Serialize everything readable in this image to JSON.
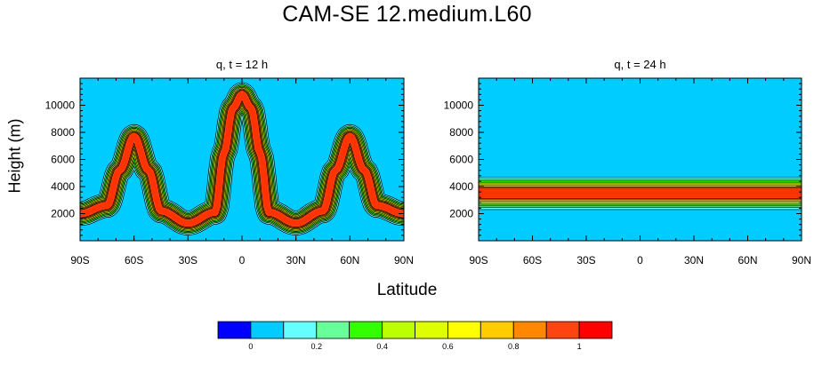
{
  "figure": {
    "title": "CAM-SE 12.medium.L60",
    "xlabel": "Latitude",
    "ylabel": "Height (m)"
  },
  "chart_data": [
    {
      "type": "heatmap",
      "title": "q, t = 12 h",
      "xlabel": "Latitude",
      "ylabel": "Height (m)",
      "x_ticks": [
        "90S",
        "60S",
        "30S",
        "0",
        "30N",
        "60N",
        "90N"
      ],
      "x_tick_values": [
        -90,
        -60,
        -30,
        0,
        30,
        60,
        90
      ],
      "y_ticks": [
        "2000",
        "4000",
        "6000",
        "8000",
        "10000"
      ],
      "y_tick_values": [
        2000,
        4000,
        6000,
        8000,
        10000
      ],
      "xlim": [
        -90,
        90
      ],
      "ylim": [
        0,
        12000
      ],
      "background_value": 0,
      "tracer_band": {
        "description": "thin layer of q ≈ 1 deformed into three upward plumes",
        "peak_latitudes": [
          -60,
          0,
          60
        ],
        "peak_heights": [
          7700,
          10800,
          7700
        ],
        "trough_latitudes": [
          -90,
          -30,
          30,
          90
        ],
        "trough_heights": [
          2000,
          1300,
          1300,
          2000
        ]
      }
    },
    {
      "type": "heatmap",
      "title": "q, t = 24 h",
      "xlabel": "Latitude",
      "ylabel": "Height (m)",
      "x_ticks": [
        "90S",
        "60S",
        "30S",
        "0",
        "30N",
        "60N",
        "90N"
      ],
      "x_tick_values": [
        -90,
        -60,
        -30,
        0,
        30,
        60,
        90
      ],
      "y_ticks": [
        "2000",
        "4000",
        "6000",
        "8000",
        "10000"
      ],
      "y_tick_values": [
        2000,
        4000,
        6000,
        8000,
        10000
      ],
      "xlim": [
        -90,
        90
      ],
      "ylim": [
        0,
        12000
      ],
      "background_value": 0,
      "tracer_band": {
        "description": "flat horizontal layer of q ≈ 1",
        "center_height": 3500,
        "bottom": 2300,
        "top": 4700
      }
    }
  ],
  "colorbar": {
    "colors": [
      "#0000ff",
      "#00ccff",
      "#66ffff",
      "#66ff99",
      "#33ff00",
      "#bbff00",
      "#ddff00",
      "#ffff00",
      "#ffcc00",
      "#ff8800",
      "#ff4411",
      "#ff0000"
    ],
    "labels": [
      "0",
      "0.2",
      "0.4",
      "0.6",
      "0.8",
      "1"
    ],
    "label_positions": [
      1,
      3,
      5,
      7,
      9,
      11
    ]
  }
}
